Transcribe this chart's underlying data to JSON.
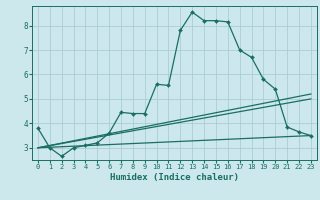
{
  "bg_color": "#cce8ec",
  "grid_color": "#aacdd4",
  "line_color": "#1a6e62",
  "xlabel": "Humidex (Indice chaleur)",
  "ylim": [
    2.5,
    8.8
  ],
  "xlim": [
    -0.5,
    23.5
  ],
  "yticks": [
    3,
    4,
    5,
    6,
    7,
    8
  ],
  "xticks": [
    0,
    1,
    2,
    3,
    4,
    5,
    6,
    7,
    8,
    9,
    10,
    11,
    12,
    13,
    14,
    15,
    16,
    17,
    18,
    19,
    20,
    21,
    22,
    23
  ],
  "line1_x": [
    0,
    1,
    2,
    3,
    4,
    5,
    6,
    7,
    8,
    9,
    10,
    11,
    12,
    13,
    14,
    15,
    16,
    17,
    18,
    19,
    20,
    21,
    22,
    23
  ],
  "line1_y": [
    3.8,
    3.0,
    2.65,
    3.0,
    3.1,
    3.2,
    3.6,
    4.45,
    4.4,
    4.4,
    5.6,
    5.55,
    7.8,
    8.55,
    8.2,
    8.2,
    8.15,
    7.0,
    6.7,
    5.8,
    5.4,
    3.85,
    3.65,
    3.5
  ],
  "line2_x": [
    0,
    23
  ],
  "line2_y": [
    3.0,
    5.2
  ],
  "line3_x": [
    0,
    23
  ],
  "line3_y": [
    3.0,
    3.5
  ],
  "line4_x": [
    0,
    23
  ],
  "line4_y": [
    3.0,
    5.0
  ],
  "marker_x": [
    0,
    1,
    2,
    3,
    4,
    5,
    6,
    7,
    8,
    9,
    10,
    11,
    12,
    13,
    14,
    15,
    16,
    17,
    18,
    19,
    20,
    21,
    22,
    23
  ],
  "marker_y": [
    3.8,
    3.0,
    2.65,
    3.0,
    3.1,
    3.2,
    3.6,
    4.45,
    4.4,
    4.4,
    5.6,
    5.55,
    7.8,
    8.55,
    8.2,
    8.2,
    8.15,
    7.0,
    6.7,
    5.8,
    5.4,
    3.85,
    3.65,
    3.5
  ]
}
